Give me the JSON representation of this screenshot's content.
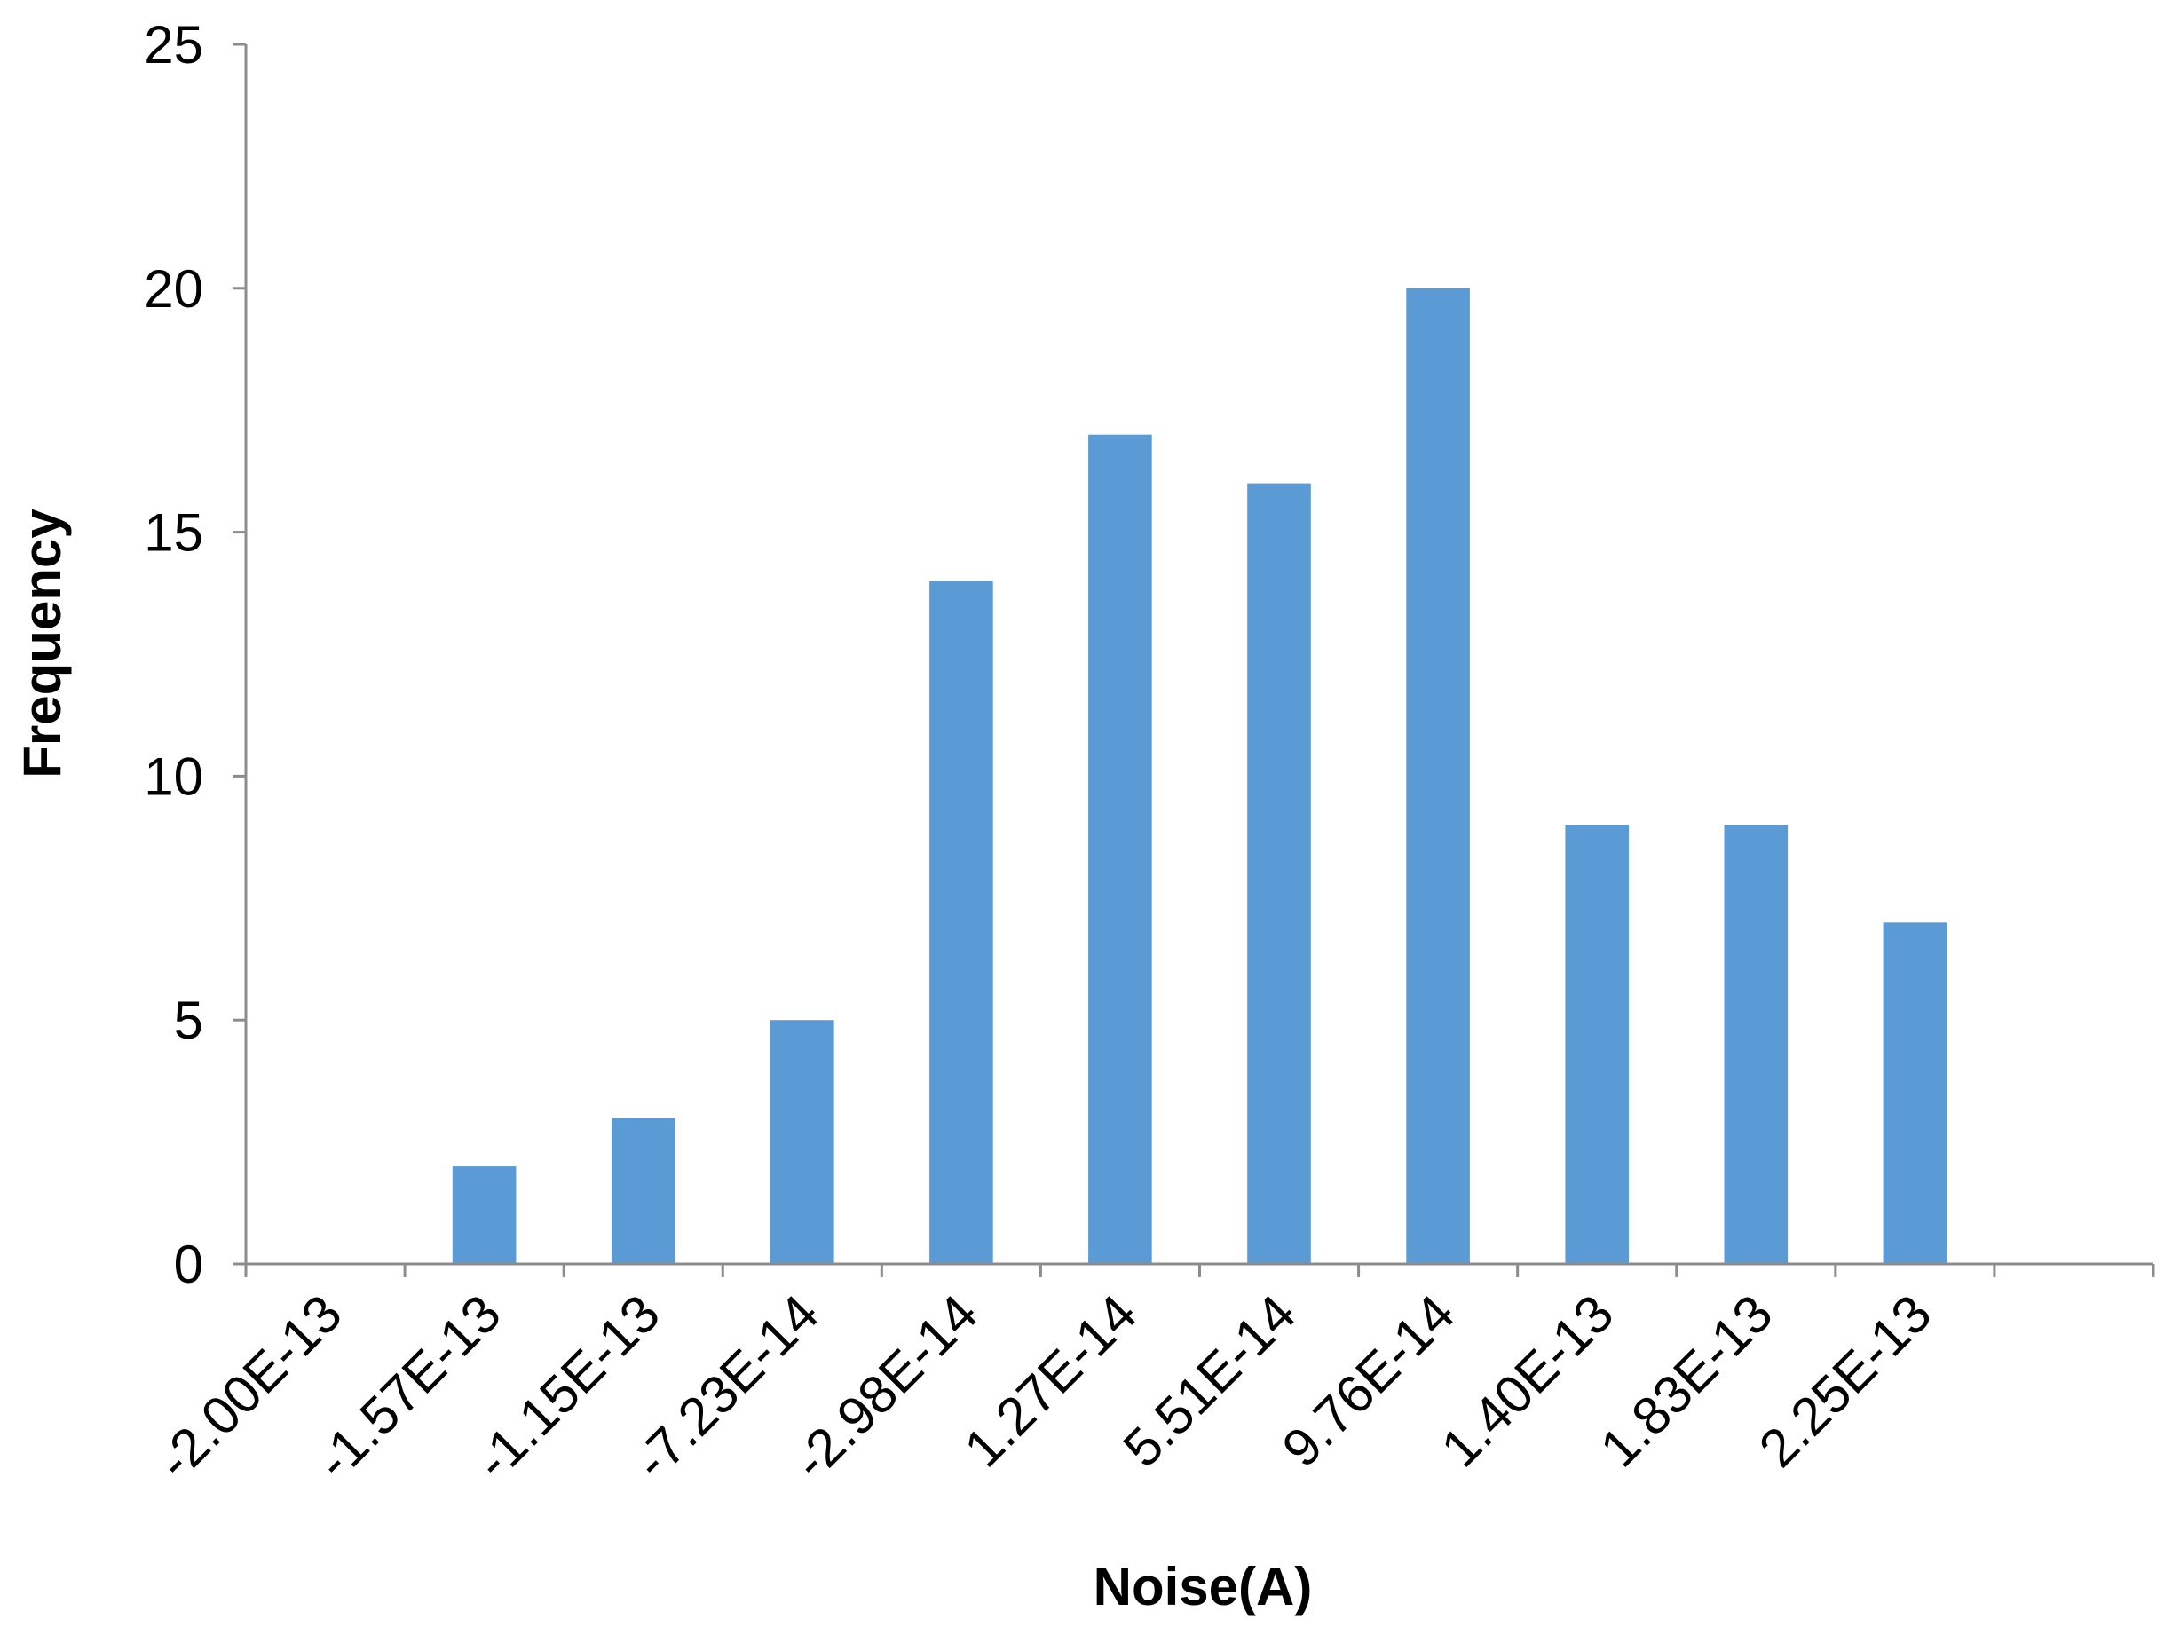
{
  "chart_data": {
    "type": "bar",
    "title": "",
    "xlabel": "Noise(A)",
    "ylabel": "Frequency",
    "categories": [
      "-2.00E-13",
      "-1.57E-13",
      "-1.15E-13",
      "-7.23E-14",
      "-2.98E-14",
      "1.27E-14",
      "5.51E-14",
      "9.76E-14",
      "1.40E-13",
      "1.83E-13",
      "2.25E-13",
      ""
    ],
    "series": [
      {
        "values": [
          0,
          2,
          3,
          5,
          14,
          17,
          16,
          20,
          9,
          9,
          7,
          0
        ]
      }
    ],
    "ylim": [
      0,
      25
    ],
    "yticks": [
      "0",
      "5",
      "10",
      "15",
      "20",
      "25"
    ],
    "grid": false,
    "legend": "none",
    "colors": {
      "bar": "#5B9BD5",
      "axis": "#8C8C8C"
    }
  }
}
